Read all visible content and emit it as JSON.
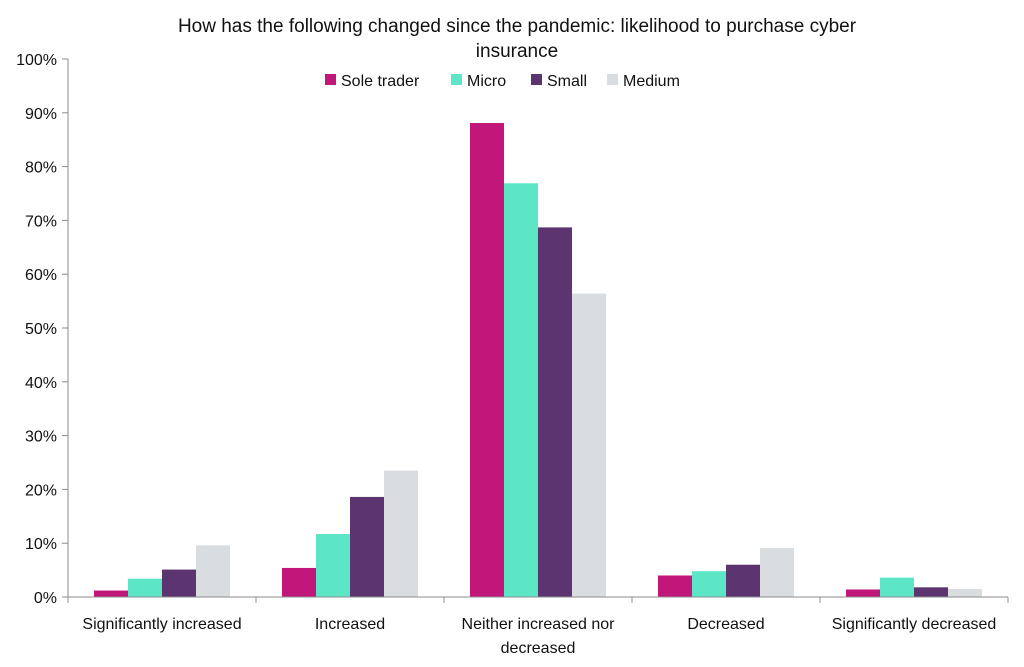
{
  "chart_data": {
    "type": "bar",
    "title_lines": [
      "How has the following changed since the pandemic: likelihood to purchase cyber",
      "insurance"
    ],
    "xlabel": "",
    "ylabel": "",
    "ylim": [
      0,
      100
    ],
    "y_ticks": [
      {
        "value": 0,
        "label": "0%"
      },
      {
        "value": 10,
        "label": "10%"
      },
      {
        "value": 20,
        "label": "20%"
      },
      {
        "value": 30,
        "label": "30%"
      },
      {
        "value": 40,
        "label": "40%"
      },
      {
        "value": 50,
        "label": "50%"
      },
      {
        "value": 60,
        "label": "60%"
      },
      {
        "value": 70,
        "label": "70%"
      },
      {
        "value": 80,
        "label": "80%"
      },
      {
        "value": 90,
        "label": "90%"
      },
      {
        "value": 100,
        "label": "100%"
      }
    ],
    "grid": false,
    "legend_position": "top-center",
    "categories": [
      [
        "Significantly increased"
      ],
      [
        "Increased"
      ],
      [
        "Neither increased nor",
        "decreased"
      ],
      [
        "Decreased"
      ],
      [
        "Significantly decreased"
      ]
    ],
    "series": [
      {
        "name": "Sole trader",
        "color": "#C2177A",
        "values": [
          1.2,
          5.4,
          88.1,
          4.0,
          1.4
        ]
      },
      {
        "name": "Micro",
        "color": "#5CE6C6",
        "values": [
          3.4,
          11.7,
          76.9,
          4.8,
          3.6
        ]
      },
      {
        "name": "Small",
        "color": "#5C3470",
        "values": [
          5.1,
          18.6,
          68.7,
          6.0,
          1.8
        ]
      },
      {
        "name": "Medium",
        "color": "#D9DDE0",
        "values": [
          9.6,
          23.5,
          56.4,
          9.1,
          1.5
        ]
      }
    ]
  }
}
